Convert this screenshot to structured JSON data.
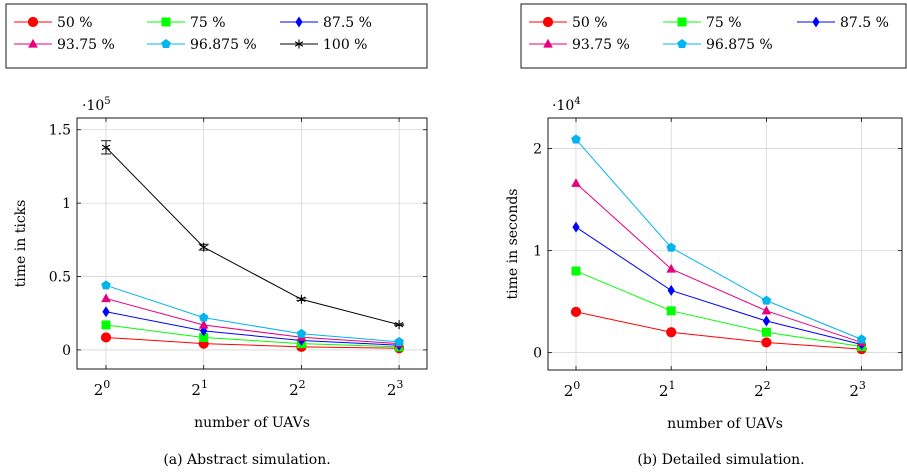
{
  "figure": {
    "captions": [
      "(a) Abstract simulation.",
      "(b) Detailed simulation."
    ]
  },
  "chart_data": [
    {
      "type": "line",
      "caption": "(a) Abstract simulation.",
      "title": "",
      "xlabel": "number of UAVs",
      "ylabel": "time in ticks",
      "scale_label": "·10",
      "scale_exp": "5",
      "x": [
        1,
        2,
        4,
        8
      ],
      "x_tick_labels": [
        {
          "base": "2",
          "exp": "0"
        },
        {
          "base": "2",
          "exp": "1"
        },
        {
          "base": "2",
          "exp": "2"
        },
        {
          "base": "2",
          "exp": "3"
        }
      ],
      "ylim": [
        -0.13,
        1.58
      ],
      "y_ticks": [
        0,
        0.5,
        1,
        1.5
      ],
      "y_tick_labels": [
        "0",
        "0.5",
        "1",
        "1.5"
      ],
      "grid": true,
      "legend_position": "top",
      "legend_columns": 3,
      "series": [
        {
          "name": "50 %",
          "color": "#ff0000",
          "marker": "circle",
          "values": [
            0.085,
            0.043,
            0.021,
            0.011
          ]
        },
        {
          "name": "75 %",
          "color": "#00ff00",
          "marker": "square",
          "values": [
            0.17,
            0.085,
            0.043,
            0.021
          ]
        },
        {
          "name": "87.5 %",
          "color": "#0000ff",
          "marker": "diamond",
          "values": [
            0.26,
            0.13,
            0.064,
            0.032
          ]
        },
        {
          "name": "93.75 %",
          "color": "#e6007e",
          "marker": "triangle",
          "values": [
            0.35,
            0.17,
            0.086,
            0.043
          ]
        },
        {
          "name": "96.875 %",
          "color": "#00b4ef",
          "marker": "pentagon",
          "values": [
            0.44,
            0.22,
            0.11,
            0.055
          ]
        },
        {
          "name": "100 %",
          "color": "#000000",
          "marker": "star",
          "values": [
            1.38,
            0.7,
            0.345,
            0.172
          ],
          "error": [
            0.045,
            0.02,
            0.008,
            0.004
          ]
        }
      ]
    },
    {
      "type": "line",
      "caption": "(b) Detailed simulation.",
      "title": "",
      "xlabel": "number of UAVs",
      "ylabel": "time in seconds",
      "scale_label": "·10",
      "scale_exp": "4",
      "x": [
        1,
        2,
        4,
        8
      ],
      "x_tick_labels": [
        {
          "base": "2",
          "exp": "0"
        },
        {
          "base": "2",
          "exp": "1"
        },
        {
          "base": "2",
          "exp": "2"
        },
        {
          "base": "2",
          "exp": "3"
        }
      ],
      "ylim": [
        -0.17,
        2.3
      ],
      "y_ticks": [
        0,
        1,
        2
      ],
      "y_tick_labels": [
        "0",
        "1",
        "2"
      ],
      "grid": true,
      "legend_position": "top",
      "legend_columns": 3,
      "series": [
        {
          "name": "50 %",
          "color": "#ff0000",
          "marker": "circle",
          "values": [
            0.4,
            0.2,
            0.1,
            0.035
          ]
        },
        {
          "name": "75 %",
          "color": "#00ff00",
          "marker": "square",
          "values": [
            0.8,
            0.41,
            0.2,
            0.06
          ]
        },
        {
          "name": "87.5 %",
          "color": "#0000ff",
          "marker": "diamond",
          "values": [
            1.23,
            0.61,
            0.31,
            0.08
          ]
        },
        {
          "name": "93.75 %",
          "color": "#e6007e",
          "marker": "triangle",
          "values": [
            1.66,
            0.82,
            0.41,
            0.1
          ]
        },
        {
          "name": "96.875 %",
          "color": "#00b4ef",
          "marker": "pentagon",
          "values": [
            2.09,
            1.03,
            0.51,
            0.13
          ]
        }
      ]
    }
  ]
}
